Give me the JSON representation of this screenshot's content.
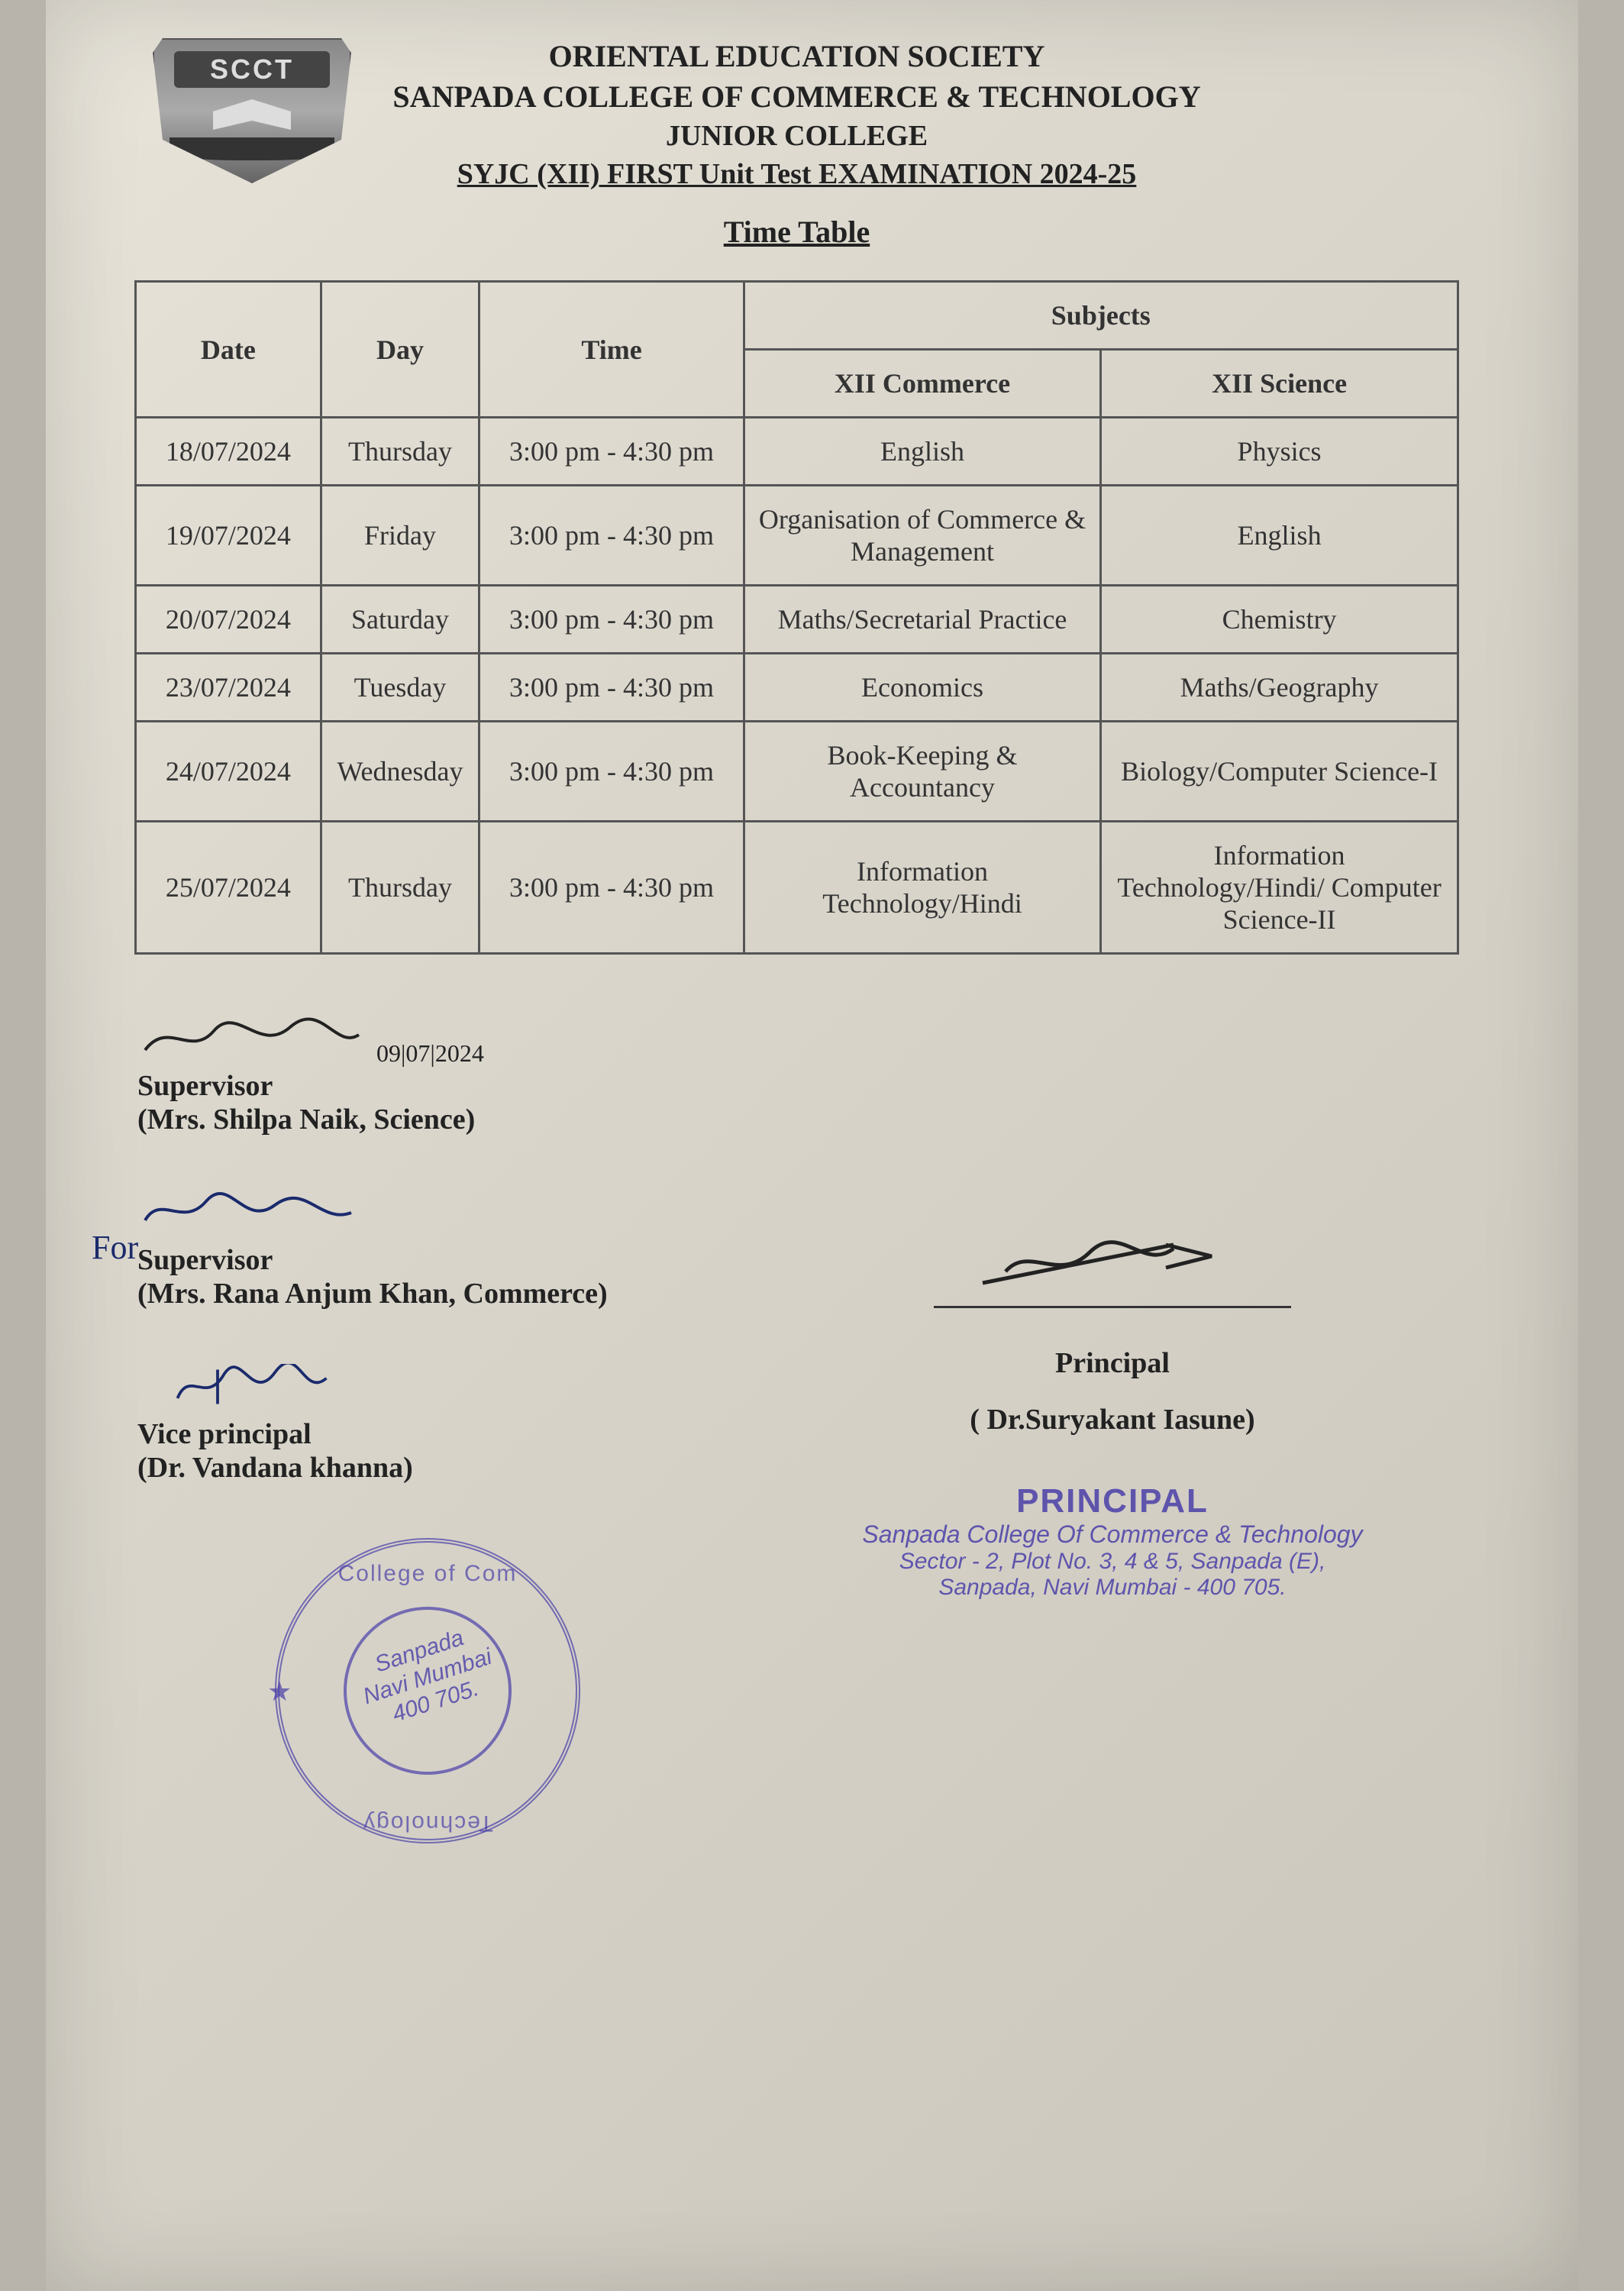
{
  "header": {
    "logo_text": "SCCT",
    "line1": "ORIENTAL EDUCATION SOCIETY",
    "line2": "SANPADA COLLEGE OF COMMERCE & TECHNOLOGY",
    "line3": "JUNIOR COLLEGE",
    "line4": "SYJC (XII) FIRST Unit Test  EXAMINATION 2024-25",
    "subtitle": "Time Table"
  },
  "table": {
    "header": {
      "date": "Date",
      "day": "Day",
      "time": "Time",
      "subjects": "Subjects",
      "col_commerce": "XII Commerce",
      "col_science": "XII Science"
    },
    "rows": [
      {
        "date": "18/07/2024",
        "day": "Thursday",
        "time": "3:00 pm - 4:30 pm",
        "commerce": "English",
        "science": "Physics"
      },
      {
        "date": "19/07/2024",
        "day": "Friday",
        "time": "3:00 pm  - 4:30 pm",
        "commerce": "Organisation of Commerce & Management",
        "science": "English"
      },
      {
        "date": "20/07/2024",
        "day": "Saturday",
        "time": "3:00 pm  - 4:30 pm",
        "commerce": "Maths/Secretarial Practice",
        "science": "Chemistry"
      },
      {
        "date": "23/07/2024",
        "day": "Tuesday",
        "time": "3:00 pm  - 4:30 pm",
        "commerce": "Economics",
        "science": "Maths/Geography"
      },
      {
        "date": "24/07/2024",
        "day": "Wednesday",
        "time": "3:00 pm  - 4:30 pm",
        "commerce": "Book-Keeping & Accountancy",
        "science": "Biology/Computer Science-I"
      },
      {
        "date": "25/07/2024",
        "day": "Thursday",
        "time": "3:00 pm  - 4:30 pm",
        "commerce": "Information Technology/Hindi",
        "science": "Information Technology/Hindi/ Computer Science-II"
      }
    ]
  },
  "signatures": {
    "supervisor1": {
      "sig_date": "09|07|2024",
      "title": "Supervisor",
      "name": "(Mrs. Shilpa Naik, Science)"
    },
    "supervisor2": {
      "for_text": "For",
      "title": "Supervisor",
      "name": "(Mrs. Rana Anjum Khan, Commerce)"
    },
    "vp": {
      "title": "Vice principal",
      "name": "(Dr. Vandana khanna)"
    },
    "principal": {
      "title": "Principal",
      "name": "( Dr.Suryakant Iasune)"
    }
  },
  "stamp_round": {
    "top": "College of Com",
    "bottom": "Technology",
    "star": "★",
    "left_word": "Sanpada",
    "center_l1": "Sanpada",
    "center_l2": "Navi Mumbai",
    "center_l3": "400 705."
  },
  "principal_stamp": {
    "l1": "PRINCIPAL",
    "l2": "Sanpada College Of Commerce & Technology",
    "l3": "Sector - 2, Plot No. 3, 4 & 5, Sanpada (E),",
    "l4": "Sanpada, Navi Mumbai - 400 705."
  },
  "colors": {
    "ink": "#2a2a28",
    "pen_blue": "#1a2a6c",
    "stamp_purple": "#4a3fa8",
    "paper_bg": "#dcd8ce",
    "border": "#555555"
  },
  "font": {
    "body_family": "Times New Roman",
    "body_size_pt": 27,
    "header_size_pt": 30
  }
}
